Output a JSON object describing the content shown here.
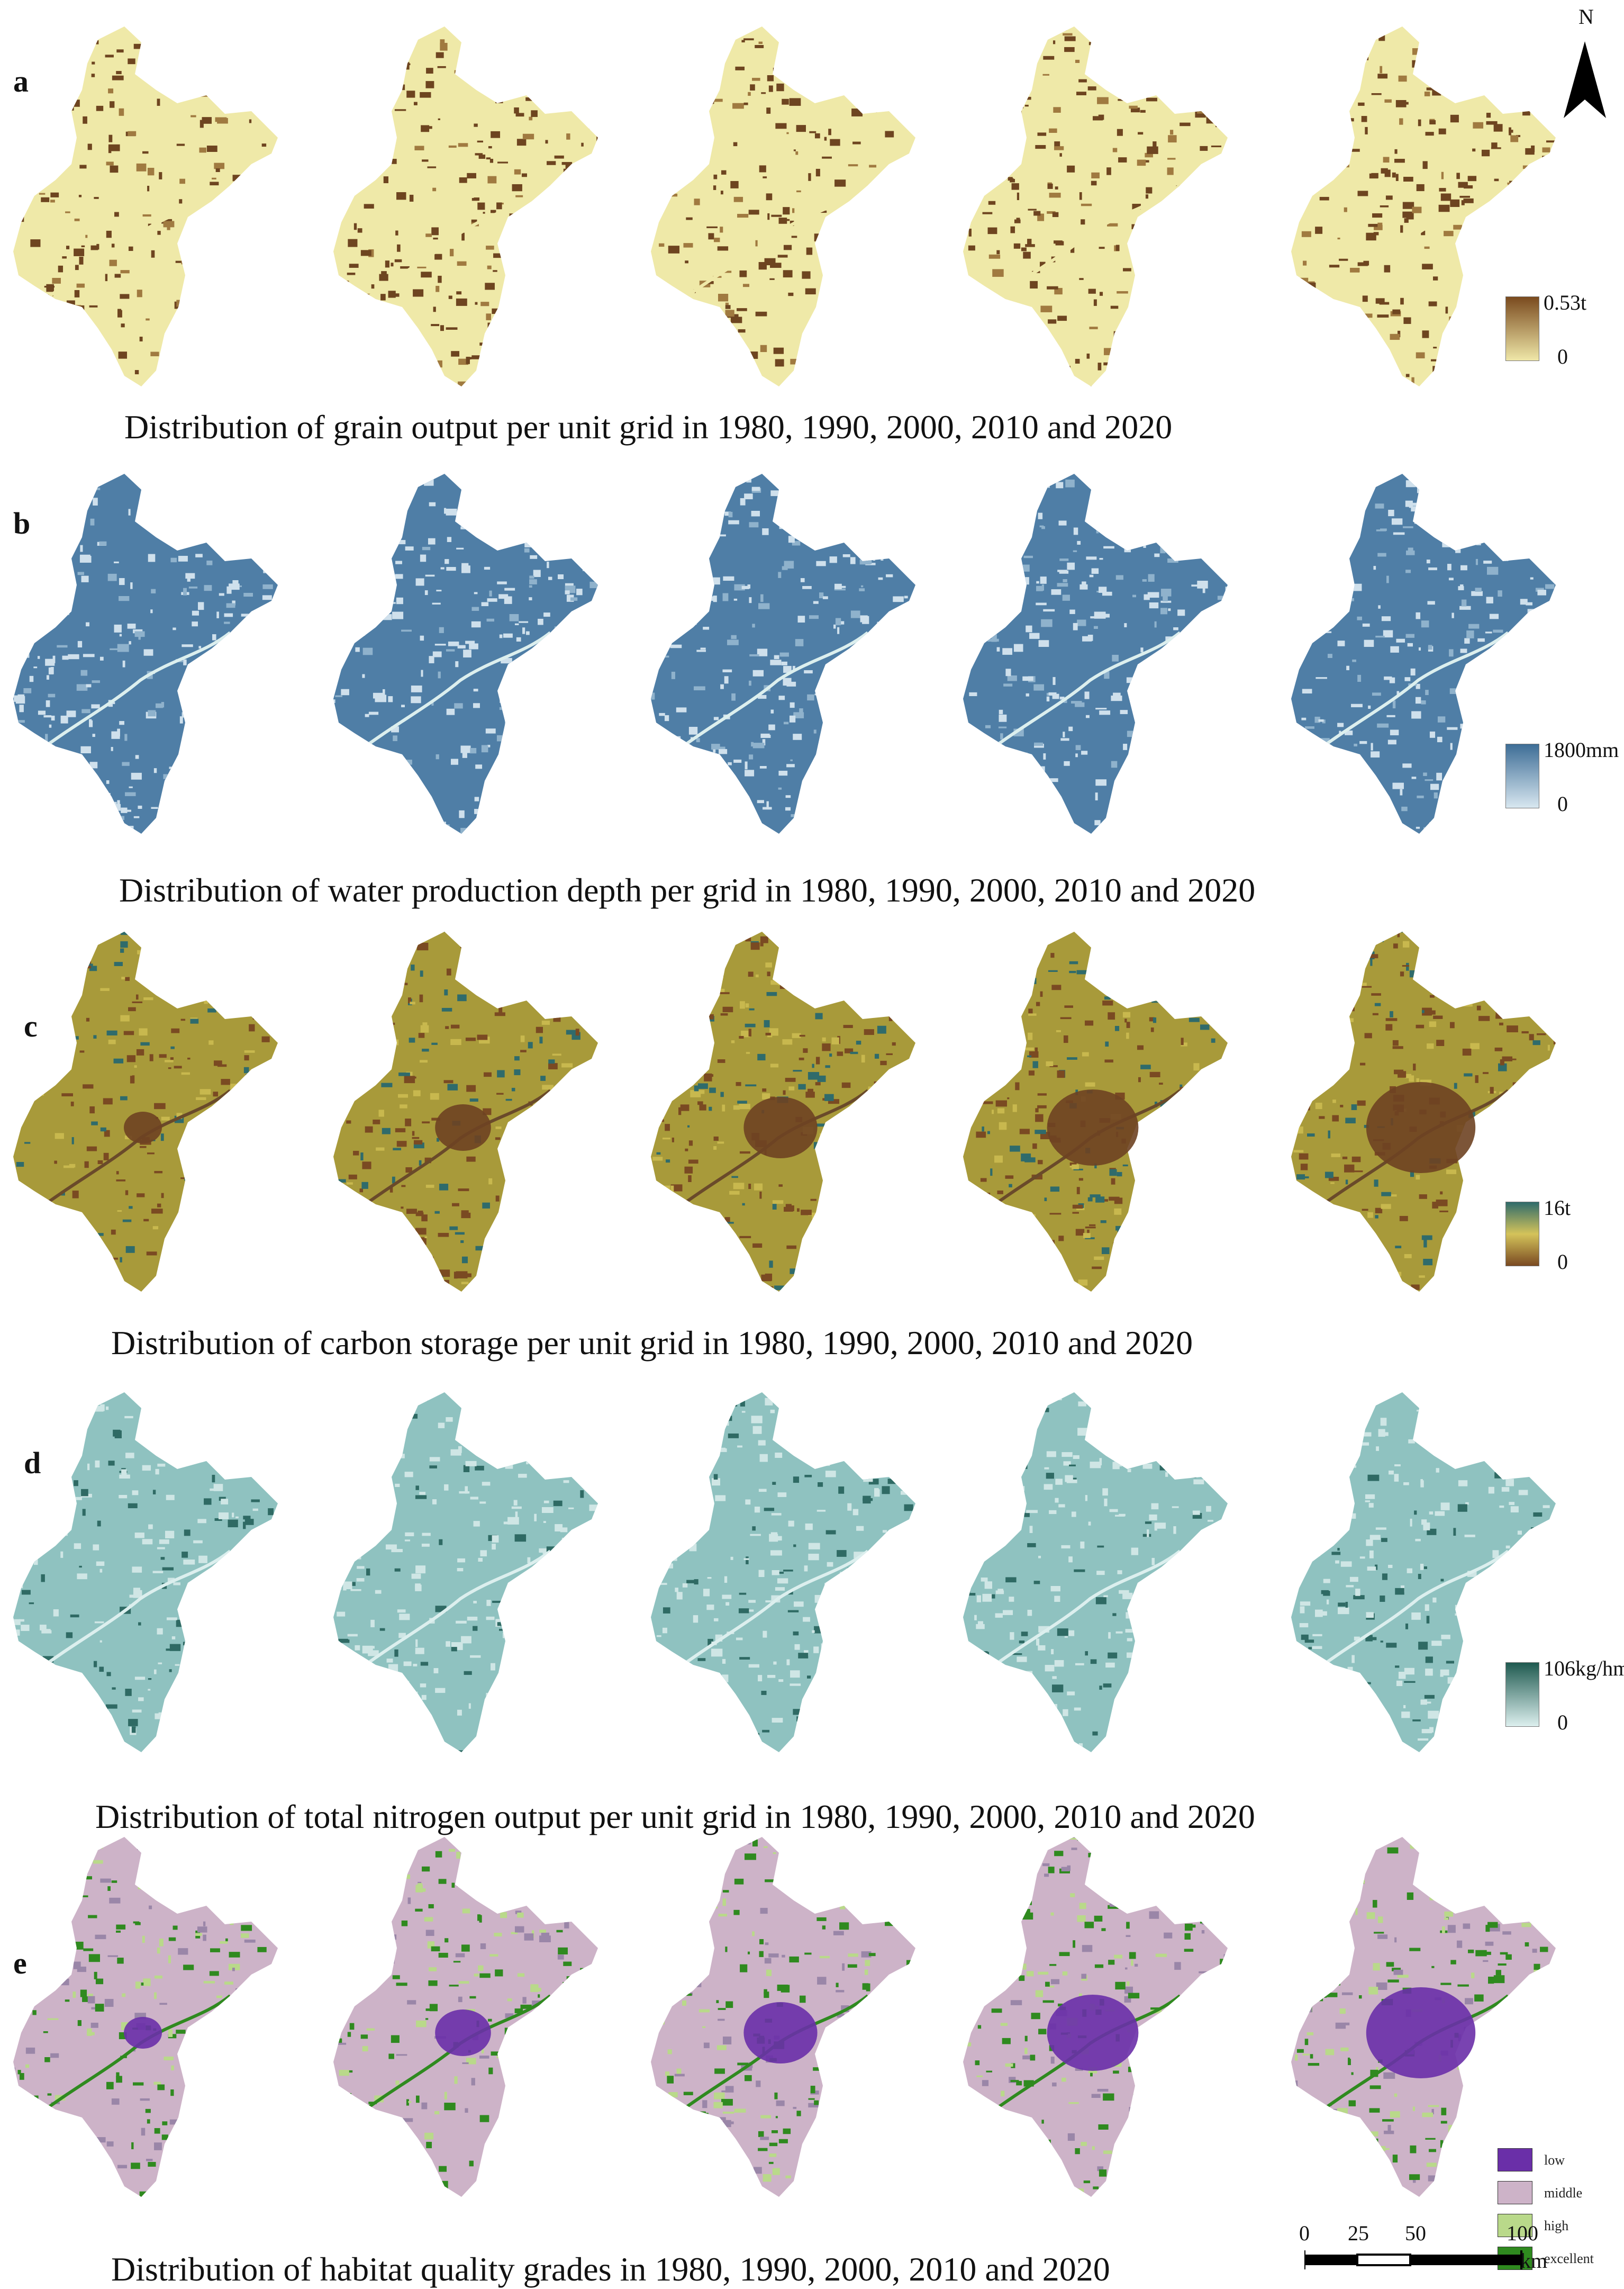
{
  "panels": [
    {
      "letter": "a",
      "caption": "Distribution of grain output per unit grid in 1980, 1990, 2000, 2010 and 2020",
      "legend": {
        "max": "0.53t",
        "min": "0",
        "top": "#7a4a1e",
        "bottom": "#efe7a8"
      },
      "style": "grain",
      "base": "#efe9a8",
      "accent": "#6e4520",
      "accent2": "#a07a40"
    },
    {
      "letter": "b",
      "caption": "Distribution of water production depth per grid in 1980, 1990, 2000, 2010 and 2020",
      "legend": {
        "max": "1800mm",
        "min": "0",
        "top": "#3d6d96",
        "bottom": "#d8e7f0"
      },
      "style": "water",
      "base": "#4f7ea6",
      "accent": "#cfe0ec",
      "accent2": "#8fb2cc"
    },
    {
      "letter": "c",
      "caption": "Distribution of carbon storage per unit grid in 1980, 1990, 2000, 2010 and 2020",
      "legend": {
        "max": "16t",
        "min": "0",
        "top": "#2f6b6b",
        "mid": "#d4c35a",
        "bottom": "#7a4a22"
      },
      "style": "carbon",
      "base": "#a89a3a",
      "accent": "#7a4a22",
      "accent2": "#2f6b6b"
    },
    {
      "letter": "d",
      "caption": "Distribution of total nitrogen output per unit grid in 1980, 1990, 2000, 2010 and 2020",
      "legend": {
        "max": "106kg/hm",
        "min": "0",
        "top": "#1f5a50",
        "bottom": "#dcefee"
      },
      "style": "nitrogen",
      "base": "#8fc2c0",
      "accent": "#cfe6e5",
      "accent2": "#2f6a64"
    },
    {
      "letter": "e",
      "caption": "Distribution of habitat quality grades in 1980, 1990, 2000, 2010 and 2020",
      "style": "habitat",
      "base": "#cdb3c8",
      "accent": "#6a2fa8",
      "accent2": "#2f8a1f"
    }
  ],
  "years": [
    "1980",
    "1990",
    "2000",
    "2010",
    "2020"
  ],
  "habitat_legend": [
    {
      "label": "low",
      "color": "#6a2fa8"
    },
    {
      "label": "middle",
      "color": "#cdb3c8"
    },
    {
      "label": "high",
      "color": "#b9d98a"
    },
    {
      "label": "excellent",
      "color": "#2f8a1f"
    }
  ],
  "north_label": "N",
  "scale": {
    "ticks": [
      "0",
      "25",
      "50",
      "100"
    ],
    "unit": "km"
  }
}
